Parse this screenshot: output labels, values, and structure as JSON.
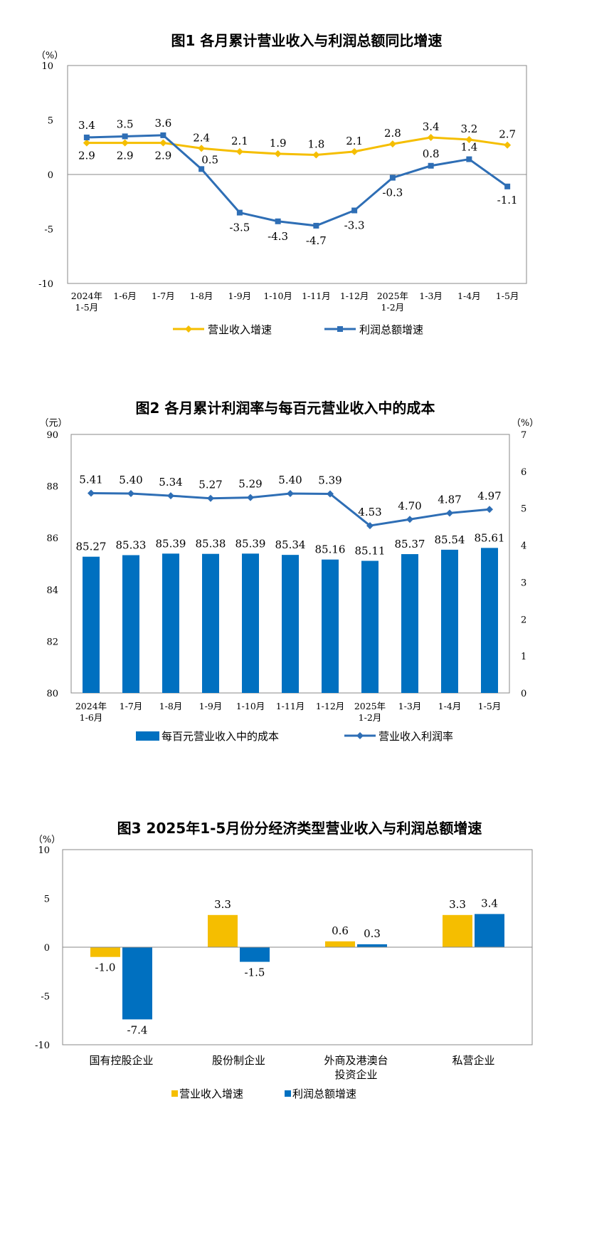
{
  "colors": {
    "gold": "#F5BE00",
    "blue": "#2E6EB5",
    "bar_blue": "#0070C0",
    "axis": "#888888"
  },
  "chart_data": [
    {
      "type": "line",
      "title": "图1  各月累计营业收入与利润总额同比增速",
      "y_unit": "（%）",
      "ylim": [
        -10,
        10
      ],
      "y_ticks": [
        "10",
        "5",
        "0",
        "-5",
        "-10"
      ],
      "categories": [
        "2024年\n1-5月",
        "1-6月",
        "1-7月",
        "1-8月",
        "1-9月",
        "1-10月",
        "1-11月",
        "1-12月",
        "2025年\n1-2月",
        "1-3月",
        "1-4月",
        "1-5月"
      ],
      "series": [
        {
          "name": "营业收入增速",
          "values": [
            2.9,
            2.9,
            2.9,
            2.4,
            2.1,
            1.9,
            1.8,
            2.1,
            2.8,
            3.4,
            3.2,
            2.7
          ],
          "labels": [
            "2.9",
            "2.9",
            "2.9",
            "2.4",
            "2.1",
            "1.9",
            "1.8",
            "2.1",
            "2.8",
            "3.4",
            "3.2",
            "2.7"
          ]
        },
        {
          "name": "利润总额增速",
          "values": [
            3.4,
            3.5,
            3.6,
            0.5,
            -3.5,
            -4.3,
            -4.7,
            -3.3,
            -0.3,
            0.8,
            1.4,
            -1.1
          ],
          "labels": [
            "3.4",
            "3.5",
            "3.6",
            "0.5",
            "-3.5",
            "-4.3",
            "-4.7",
            "-3.3",
            "-0.3",
            "0.8",
            "1.4",
            "-1.1"
          ]
        }
      ]
    },
    {
      "type": "bar+line",
      "title": "图2  各月累计利润率与每百元营业收入中的成本",
      "y_unit_left": "（元）",
      "y_unit_right": "（%）",
      "ylim_left": [
        80,
        90
      ],
      "ylim_right": [
        0,
        7
      ],
      "y_ticks_left": [
        "90",
        "88",
        "86",
        "84",
        "82",
        "80"
      ],
      "y_ticks_right": [
        "7",
        "6",
        "5",
        "4",
        "3",
        "2",
        "1",
        "0"
      ],
      "categories": [
        "2024年\n1-6月",
        "1-7月",
        "1-8月",
        "1-9月",
        "1-10月",
        "1-11月",
        "1-12月",
        "2025年\n1-2月",
        "1-3月",
        "1-4月",
        "1-5月"
      ],
      "series": [
        {
          "name": "每百元营业收入中的成本",
          "values": [
            85.27,
            85.33,
            85.39,
            85.38,
            85.39,
            85.34,
            85.16,
            85.11,
            85.37,
            85.54,
            85.61
          ],
          "labels": [
            "85.27",
            "85.33",
            "85.39",
            "85.38",
            "85.39",
            "85.34",
            "85.16",
            "85.11",
            "85.37",
            "85.54",
            "85.61"
          ]
        },
        {
          "name": "营业收入利润率",
          "values": [
            5.41,
            5.4,
            5.34,
            5.27,
            5.29,
            5.4,
            5.39,
            4.53,
            4.7,
            4.87,
            4.97
          ],
          "labels": [
            "5.41",
            "5.40",
            "5.34",
            "5.27",
            "5.29",
            "5.40",
            "5.39",
            "4.53",
            "4.70",
            "4.87",
            "4.97"
          ]
        }
      ]
    },
    {
      "type": "bar",
      "title": "图3  2025年1-5月份分经济类型营业收入与利润总额增速",
      "y_unit": "（%）",
      "ylim": [
        -10,
        10
      ],
      "y_ticks": [
        "10",
        "5",
        "0",
        "-5",
        "-10"
      ],
      "categories": [
        "国有控股企业",
        "股份制企业",
        "外商及港澳台\n投资企业",
        "私营企业"
      ],
      "series": [
        {
          "name": "营业收入增速",
          "values": [
            -1.0,
            3.3,
            0.6,
            3.3
          ],
          "labels": [
            "-1.0",
            "3.3",
            "0.6",
            "3.3"
          ]
        },
        {
          "name": "利润总额增速",
          "values": [
            -7.4,
            -1.5,
            0.3,
            3.4
          ],
          "labels": [
            "-7.4",
            "-1.5",
            "0.3",
            "3.4"
          ]
        }
      ]
    }
  ]
}
